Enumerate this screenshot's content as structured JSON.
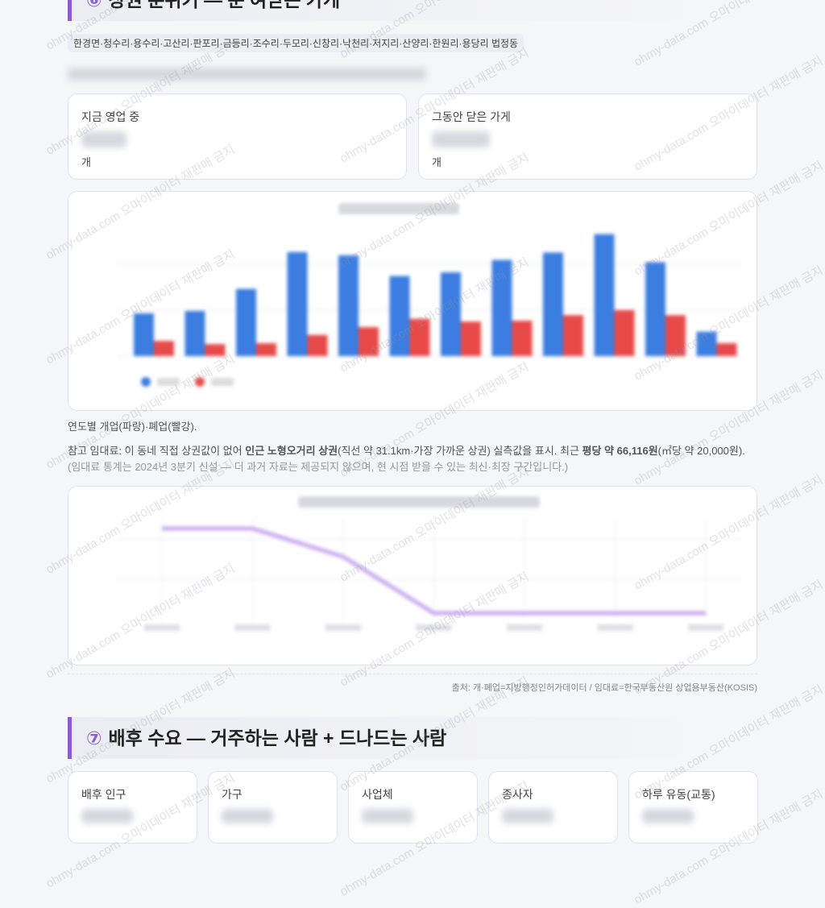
{
  "section6": {
    "number": "⑥",
    "title": "상권 분위기 — 문 여닫는 가게",
    "tag": "한경면·청수리·용수리·고산리·판포리·금등리·조수리·두모리·신창리·낙천리·저지리·산양리·한원리·용당리 법정동",
    "cards": [
      {
        "label": "지금 영업 중",
        "unit": "개"
      },
      {
        "label": "그동안 닫은 가게",
        "unit": "개"
      }
    ],
    "store_chart": {
      "type": "bar",
      "series": [
        {
          "color": "#3b7de0",
          "values": [
            93,
            98,
            146,
            226,
            219,
            174,
            182,
            209,
            225,
            265,
            204,
            53
          ]
        },
        {
          "color": "#e84a4a",
          "values": [
            33,
            26,
            28,
            46,
            63,
            81,
            75,
            77,
            89,
            100,
            89,
            28
          ]
        }
      ],
      "ylim": [
        0,
        280
      ],
      "yticks": [
        0,
        100,
        200
      ]
    },
    "chart_caption": "연도별 개업(파랑)·폐업(빨강).",
    "rent_note": [
      "참고 임대료: 이 동네 직접 상권값이 없어 ",
      "인근 노형오거리 상권",
      "(직선 약 31.1km·가장 가까운 상권) 실측값을 표시. 최근 ",
      "평당 약 66,116원",
      "(㎡당 약 20,000원). ",
      "(임대료 통계는 2024년 3분기 신설 — 더 과거 자료는 제공되지 않으며, 현 시점 받을 수 있는 최신·최장 구간입니다.)"
    ],
    "rent_chart": {
      "type": "line",
      "color": "#c9a8f0",
      "values": [
        2.26,
        2.26,
        1.56,
        0.16,
        0.16,
        0.16,
        0.16
      ],
      "ylim": [
        0,
        2.6
      ],
      "yticks": [
        1,
        2
      ]
    },
    "source": "출처: 개·폐업=지방행정인허가데이터 / 임대료=한국부동산원 상업용부동산(KOSIS)"
  },
  "section7": {
    "number": "⑦",
    "title": "배후 수요 — 거주하는 사람 + 드나드는 사람",
    "cards": [
      "배후 인구",
      "가구",
      "사업체",
      "종사자",
      "하루 유동(교통)"
    ]
  },
  "watermark": "ohmy-data.com 오마이데이터 재판매 금지"
}
